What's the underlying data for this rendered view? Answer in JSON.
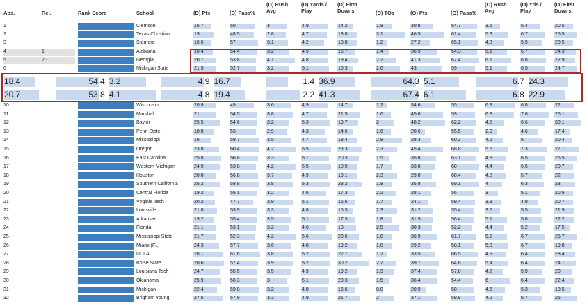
{
  "header": {
    "columns": [
      "Abs.",
      "Rel.",
      "Rank Score",
      "School",
      "(D) Pts",
      "(D) Pass%",
      "(D) Rush Avg",
      "(D) Yards / Play",
      "(D) First Downs",
      "(D) TOs",
      "(O) Pts",
      "(O) Pass%",
      "(O) Rush Avg",
      "(O) Yds / Play",
      "(O) First Downs"
    ]
  },
  "table": {
    "rows": [
      {
        "abs": 1,
        "school": "Clemson",
        "values": [
          16.7,
          50,
          3,
          4.9,
          14.2,
          1.8,
          30.8,
          64.7,
          3.5,
          5.4,
          20.5
        ]
      },
      {
        "abs": 2,
        "school": "Texas Christian",
        "values": [
          19,
          48.5,
          2.8,
          4.7,
          18.8,
          3.1,
          46.5,
          61.4,
          5.3,
          6.7,
          25.5
        ]
      },
      {
        "abs": 3,
        "school": "Stanford",
        "values": [
          16.6,
          57,
          3.1,
          4.2,
          18.8,
          1.2,
          27.2,
          65.1,
          4.3,
          5.9,
          20.5
        ]
      },
      {
        "abs": 4,
        "rel": "1 -",
        "school": "Alabama",
        "values": [
          18.4,
          54.4,
          3.2,
          4.9,
          16.7,
          1.4,
          36.9,
          64.3,
          5.1,
          6.7,
          24.3
        ]
      },
      {
        "abs": 5,
        "rel": "2 -",
        "school": "Georgia",
        "values": [
          20.7,
          53.8,
          4.1,
          4.8,
          19.4,
          2.2,
          41.3,
          67.4,
          6.1,
          6.8,
          22.9
        ]
      },
      {
        "abs": 6,
        "school": "Michigan State",
        "values": [
          21.5,
          52.7,
          3.2,
          5.1,
          15.3,
          2.6,
          43,
          59,
          5.1,
          6.5,
          24.7
        ]
      },
      {
        "abs": 10,
        "school": "Wisconsin",
        "values": [
          20.8,
          49,
          3.6,
          4.9,
          14.7,
          1.2,
          34.6,
          55,
          6.9,
          6.8,
          22
        ]
      },
      {
        "abs": 11,
        "school": "Marshall",
        "values": [
          21,
          54.5,
          3.8,
          4.7,
          21.5,
          1.6,
          45.6,
          59,
          6.8,
          7.6,
          26.1
        ]
      },
      {
        "abs": 12,
        "school": "Baylor",
        "values": [
          25.5,
          54.6,
          3.2,
          5.3,
          19.7,
          2,
          48.2,
          62.2,
          4.5,
          6.6,
          30.1
        ]
      },
      {
        "abs": 13,
        "school": "Penn State",
        "values": [
          18.8,
          53,
          2.9,
          4.3,
          14.6,
          1.6,
          20.6,
          55.5,
          2.9,
          4.6,
          17.4
        ]
      },
      {
        "abs": 14,
        "school": "Mississippi",
        "values": [
          16,
          59.7,
          3.5,
          4.7,
          18.4,
          2.8,
          28.3,
          60.3,
          4.2,
          6,
          20.4
        ]
      },
      {
        "abs": 15,
        "school": "Oregon",
        "values": [
          23.8,
          60.4,
          4.2,
          5.5,
          23.3,
          2.3,
          45.4,
          68.8,
          5.5,
          7.3,
          27.1
        ]
      },
      {
        "abs": 16,
        "school": "East Carolina",
        "values": [
          25.8,
          56.8,
          3.3,
          5.1,
          20.3,
          1.5,
          35.8,
          63.1,
          4.8,
          6.5,
          25.5
        ]
      },
      {
        "abs": 17,
        "school": "Western Michigan",
        "values": [
          24.9,
          53.8,
          4.2,
          5.5,
          18.9,
          1.7,
          33.8,
          68,
          4.4,
          6.5,
          20.7
        ]
      },
      {
        "abs": 18,
        "school": "Houston",
        "values": [
          20.8,
          56.8,
          3.7,
          4.9,
          19.1,
          2.3,
          29.8,
          60.4,
          4.8,
          5.7,
          22
        ]
      },
      {
        "abs": 19,
        "school": "Southern California",
        "values": [
          25.2,
          58.8,
          3.8,
          5.3,
          23.2,
          1.8,
          35.8,
          69.1,
          4,
          6.3,
          23
        ]
      },
      {
        "abs": 20,
        "school": "Central Florida",
        "values": [
          19.2,
          55.1,
          3.2,
          4.6,
          17.3,
          2.2,
          28.1,
          56,
          3,
          5.1,
          20.5
        ]
      },
      {
        "abs": 21,
        "school": "Virginia Tech",
        "values": [
          20.2,
          47.7,
          3.9,
          5.1,
          16.6,
          1.7,
          24.1,
          59.4,
          3.8,
          4.9,
          20.7
        ]
      },
      {
        "abs": 22,
        "school": "Louisville",
        "values": [
          21.8,
          53.9,
          3.3,
          4.8,
          15.3,
          2.3,
          31.2,
          55.4,
          3.6,
          5.5,
          21.9
        ]
      },
      {
        "abs": 23,
        "school": "Arkansas",
        "values": [
          19.2,
          55.4,
          3.5,
          5.1,
          17.3,
          1.8,
          31.5,
          56.4,
          5.1,
          5.8,
          22.2
        ]
      },
      {
        "abs": 24,
        "school": "Florida",
        "values": [
          21.1,
          53.1,
          3.2,
          4.6,
          18,
          2.5,
          30.3,
          52.2,
          4.4,
          5.2,
          17.5
        ]
      },
      {
        "abs": 25,
        "school": "Mississippi State",
        "values": [
          21.7,
          52.3,
          4.2,
          5.6,
          20.6,
          1.8,
          36.9,
          61.7,
          5.2,
          6.7,
          25.7
        ]
      },
      {
        "abs": 26,
        "school": "Miami (FL)",
        "values": [
          24.3,
          57.7,
          3.6,
          4.8,
          19.2,
          1.8,
          29.2,
          58.1,
          5.3,
          6.7,
          19.8
        ]
      },
      {
        "abs": 27,
        "school": "UCLA",
        "values": [
          28.1,
          61.6,
          3.8,
          5.2,
          22.7,
          1.2,
          33.5,
          66.5,
          4.9,
          6.4,
          23.4
        ]
      },
      {
        "abs": 28,
        "school": "Boise State",
        "values": [
          28.6,
          57.4,
          3.9,
          5.2,
          30.2,
          2.2,
          39.7,
          64.8,
          5.4,
          6.4,
          24.1
        ]
      },
      {
        "abs": 29,
        "school": "Louisiana Tech",
        "values": [
          24.7,
          55.5,
          3.5,
          4.9,
          19.2,
          1.9,
          37.4,
          57.8,
          4.2,
          5.9,
          20
        ]
      },
      {
        "abs": 30,
        "school": "Oklahoma",
        "values": [
          25.9,
          56.3,
          3,
          5.1,
          20.3,
          1.5,
          36.4,
          54.4,
          6,
          6.4,
          22.4
        ]
      },
      {
        "abs": 31,
        "school": "Michigan",
        "values": [
          22.4,
          59.8,
          3.2,
          4.8,
          16.6,
          0.8,
          20.9,
          58,
          4.6,
          5.3,
          18.5
        ]
      },
      {
        "abs": 32,
        "school": "Brigham Young",
        "values": [
          27.5,
          57.9,
          3.3,
          4.9,
          21.7,
          2,
          37.1,
          59.8,
          4.2,
          5.7,
          25
        ]
      }
    ]
  }
}
